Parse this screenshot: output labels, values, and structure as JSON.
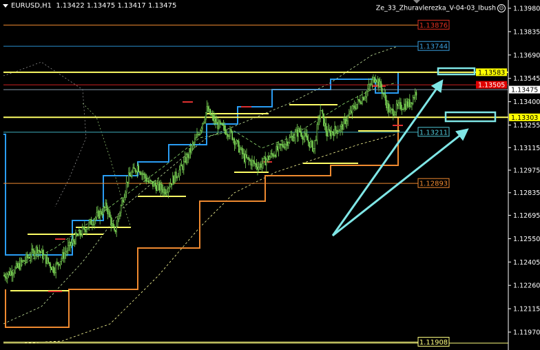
{
  "header": {
    "symbol": "EURUSD,H1",
    "ohlc": "1.13422 1.13475 1.13417 1.13475"
  },
  "indicator_name": "Ze_33_Zhuravlerezka_V-04-03_Ibush",
  "colors": {
    "background": "#000000",
    "candle": "#7ed957",
    "axis": "#ffffff",
    "arrow": "#7fe6e6",
    "step_blue": "#2a9df4",
    "step_orange": "#f08a30",
    "yellow": "#ffff66"
  },
  "chart_data": {
    "type": "candlestick",
    "title": "EURUSD,H1",
    "ylim": [
      1.1187,
      1.1403
    ],
    "y_ticks": [
      "1.13980",
      "1.13835",
      "1.13690",
      "1.13545",
      "1.13400",
      "1.13255",
      "1.13115",
      "1.12975",
      "1.12835",
      "1.12695",
      "1.12550",
      "1.12405",
      "1.12260",
      "1.12115",
      "1.11970"
    ],
    "approx_close_path": [
      [
        0,
        1.1232
      ],
      [
        10,
        1.1236
      ],
      [
        30,
        1.1249
      ],
      [
        45,
        1.1236
      ],
      [
        62,
        1.1253
      ],
      [
        80,
        1.1266
      ],
      [
        93,
        1.1275
      ],
      [
        100,
        1.1258
      ],
      [
        112,
        1.1292
      ],
      [
        121,
        1.13
      ],
      [
        131,
        1.129
      ],
      [
        146,
        1.1285
      ],
      [
        162,
        1.13
      ],
      [
        175,
        1.1318
      ],
      [
        184,
        1.1335
      ],
      [
        193,
        1.1326
      ],
      [
        206,
        1.132
      ],
      [
        218,
        1.1305
      ],
      [
        231,
        1.13
      ],
      [
        243,
        1.1307
      ],
      [
        256,
        1.1315
      ],
      [
        268,
        1.1322
      ],
      [
        281,
        1.1311
      ],
      [
        287,
        1.1335
      ],
      [
        293,
        1.132
      ],
      [
        306,
        1.1324
      ],
      [
        318,
        1.1337
      ],
      [
        328,
        1.1345
      ],
      [
        337,
        1.1356
      ],
      [
        343,
        1.1347
      ],
      [
        350,
        1.1333
      ],
      [
        359,
        1.1337
      ],
      [
        368,
        1.1339
      ],
      [
        375,
        1.13475
      ]
    ],
    "last_price": "1.13475",
    "levels": [
      {
        "price": "1.13876",
        "line": "#f08a30",
        "label_color": "#e03020",
        "where": "box"
      },
      {
        "price": "1.13744",
        "line": "#2a8fd0",
        "label_color": "#3aa0e0",
        "where": "box"
      },
      {
        "price": "1.13583",
        "line": "#ffff66",
        "label_color": "#ffff00",
        "where": "axis"
      },
      {
        "price": "1.13505",
        "line": "#d02020",
        "label_color": "#e00000",
        "where": "axis"
      },
      {
        "price": "1.13475",
        "line": "#8899aa",
        "label_color": "#ffffff",
        "where": "axis"
      },
      {
        "price": "1.13303",
        "line": "#ffff66",
        "label_color": "#ffff00",
        "where": "axis"
      },
      {
        "price": "1.13211",
        "line": "#40b0c0",
        "label_color": "#50c8d8",
        "where": "box"
      },
      {
        "price": "1.12893",
        "line": "#f08a30",
        "label_color": "#f08a30",
        "where": "box"
      },
      {
        "price": "1.11908",
        "line": "#ffff80",
        "label_color": "#ffff80",
        "where": "box"
      }
    ]
  }
}
